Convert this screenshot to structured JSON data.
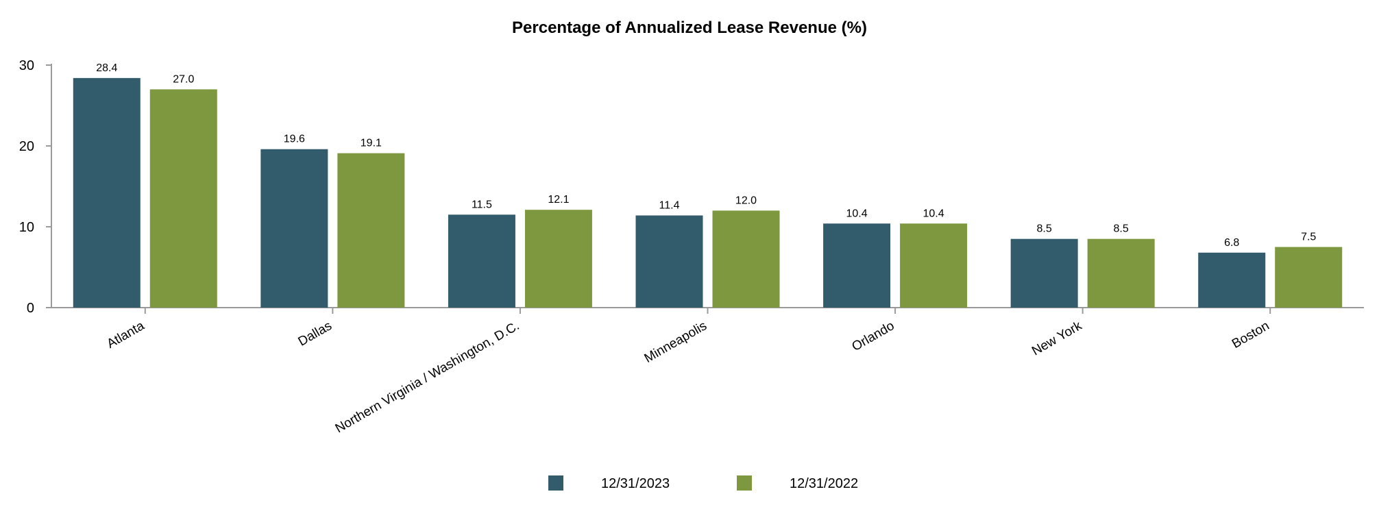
{
  "chart_data": {
    "type": "bar",
    "title": "Percentage of Annualized Lease Revenue (%)",
    "xlabel": "",
    "ylabel": "",
    "ylim": [
      0,
      30
    ],
    "yticks": [
      0,
      10,
      20,
      30
    ],
    "categories": [
      "Atlanta",
      "Dallas",
      "Northern Virginia / Washington, D.C.",
      "Minneapolis",
      "Orlando",
      "New York",
      "Boston"
    ],
    "series": [
      {
        "name": "12/31/2023",
        "color": "#325b6b",
        "values": [
          28.4,
          19.6,
          11.5,
          11.4,
          10.4,
          8.5,
          6.8
        ],
        "labels": [
          "28.4",
          "19.6",
          "11.5",
          "11.4",
          "10.4",
          "8.5",
          "6.8"
        ]
      },
      {
        "name": "12/31/2022",
        "color": "#7d983e",
        "values": [
          27.0,
          19.1,
          12.1,
          12.0,
          10.4,
          8.5,
          7.5
        ],
        "labels": [
          "27.0",
          "19.1",
          "12.1",
          "12.0",
          "10.4",
          "8.5",
          "7.5"
        ]
      }
    ],
    "grid": false,
    "legend_position": "bottom"
  },
  "colors": {
    "axis": "#9a9a9a"
  }
}
